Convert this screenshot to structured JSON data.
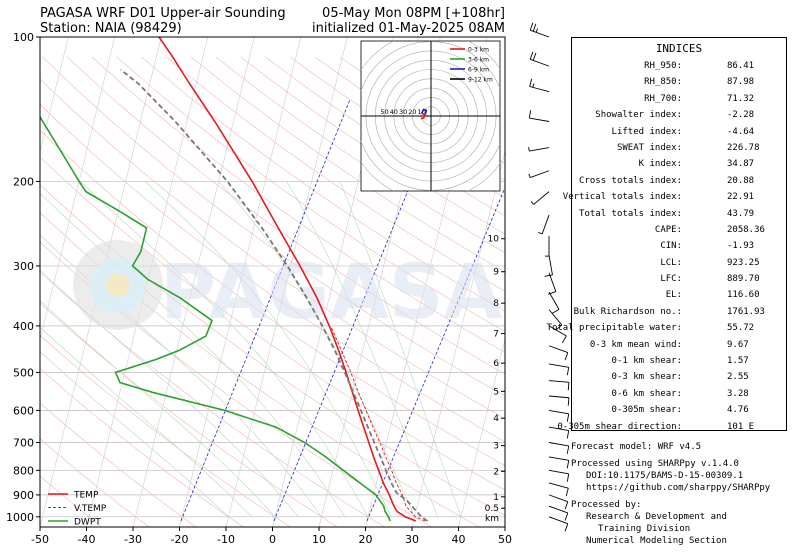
{
  "header": {
    "title_left_line1": "PAGASA WRF D01 Upper-air Sounding",
    "title_left_line2": "Station: NAIA (98429)",
    "title_right_line1": "05-May Mon 08PM [+108hr]",
    "title_right_line2": "initialized 01-May-2025 08AM"
  },
  "watermark": "PAGASA",
  "chart_data": {
    "type": "skew-t",
    "x_ticks": [
      -50,
      -40,
      -30,
      -20,
      -10,
      0,
      10,
      20,
      30,
      40,
      50
    ],
    "xlim": [
      -50,
      50
    ],
    "y_ticks": [
      1000,
      900,
      800,
      700,
      600,
      500,
      400,
      300,
      200,
      100
    ],
    "ylim": [
      1050,
      100
    ],
    "y_scale": "log",
    "height_km_labels": [
      "km",
      "0.5",
      "1",
      "2",
      "3",
      "4",
      "5",
      "6",
      "7",
      "8",
      "9",
      "10"
    ],
    "height_km_values": [
      null,
      0.5,
      1,
      2,
      3,
      4,
      5,
      6,
      7,
      8,
      9,
      10
    ],
    "grid": true,
    "legend_position": "bottom-left",
    "legend": [
      {
        "label": "TEMP",
        "color": "#e41a1c",
        "style": "solid"
      },
      {
        "label": "V.TEMP",
        "color": "#e41a1c",
        "style": "dashed"
      },
      {
        "label": "DWPT",
        "color": "#2ca02c",
        "style": "solid"
      }
    ],
    "series": [
      {
        "name": "TEMP",
        "color": "#e41a1c",
        "points": [
          [
            1020,
            30.5
          ],
          [
            1000,
            28
          ],
          [
            975,
            26
          ],
          [
            950,
            25
          ],
          [
            925,
            24.2
          ],
          [
            900,
            23.4
          ],
          [
            850,
            21.5
          ],
          [
            800,
            19.8
          ],
          [
            750,
            18
          ],
          [
            700,
            16.2
          ],
          [
            650,
            14.3
          ],
          [
            600,
            12.2
          ],
          [
            550,
            10
          ],
          [
            500,
            7.6
          ],
          [
            450,
            4.8
          ],
          [
            400,
            1.5
          ],
          [
            350,
            -2.6
          ],
          [
            300,
            -8
          ],
          [
            250,
            -14.7
          ],
          [
            200,
            -22.8
          ],
          [
            175,
            -28
          ],
          [
            150,
            -34
          ],
          [
            125,
            -41.5
          ],
          [
            110,
            -46.5
          ],
          [
            100,
            -50.5
          ]
        ]
      },
      {
        "name": "V.TEMP",
        "color": "#e41a1c",
        "points": [
          [
            1020,
            32.5
          ],
          [
            1000,
            30.2
          ],
          [
            950,
            27.6
          ],
          [
            900,
            26.2
          ],
          [
            850,
            24.3
          ],
          [
            800,
            22.6
          ],
          [
            750,
            20.6
          ],
          [
            700,
            18.6
          ],
          [
            650,
            16.3
          ],
          [
            600,
            13.9
          ],
          [
            550,
            11.3
          ],
          [
            500,
            8.6
          ],
          [
            450,
            5.4
          ],
          [
            400,
            1.8
          ]
        ]
      },
      {
        "name": "DWPT",
        "color": "#2ca02c",
        "points": [
          [
            1020,
            25
          ],
          [
            1000,
            24.4
          ],
          [
            975,
            23.4
          ],
          [
            950,
            22.8
          ],
          [
            925,
            21.7
          ],
          [
            900,
            20.5
          ],
          [
            850,
            16.5
          ],
          [
            800,
            12.2
          ],
          [
            750,
            7.7
          ],
          [
            700,
            2.4
          ],
          [
            650,
            -4.6
          ],
          [
            600,
            -16.5
          ],
          [
            550,
            -33
          ],
          [
            525,
            -40.5
          ],
          [
            500,
            -42
          ],
          [
            470,
            -34
          ],
          [
            450,
            -29.5
          ],
          [
            420,
            -24.5
          ],
          [
            390,
            -24
          ],
          [
            350,
            -32
          ],
          [
            320,
            -40
          ],
          [
            300,
            -44
          ],
          [
            280,
            -43
          ],
          [
            250,
            -43
          ],
          [
            230,
            -50
          ],
          [
            210,
            -58
          ],
          [
            200,
            -60
          ],
          [
            180,
            -64
          ],
          [
            150,
            -71
          ],
          [
            125,
            -78
          ],
          [
            110,
            -83
          ],
          [
            100,
            -86
          ]
        ]
      },
      {
        "name": "parcel",
        "color": "#777777",
        "points": [
          [
            1020,
            33
          ],
          [
            1000,
            31.5
          ],
          [
            925,
            27.5
          ],
          [
            890,
            24.8
          ],
          [
            850,
            23.2
          ],
          [
            800,
            21.4
          ],
          [
            750,
            19.5
          ],
          [
            700,
            17.4
          ],
          [
            650,
            15.2
          ],
          [
            600,
            12.8
          ],
          [
            550,
            10.2
          ],
          [
            500,
            7.3
          ],
          [
            450,
            4
          ],
          [
            400,
            0
          ],
          [
            350,
            -4.8
          ],
          [
            300,
            -10.7
          ],
          [
            250,
            -18.2
          ],
          [
            200,
            -28.1
          ],
          [
            150,
            -42.5
          ],
          [
            125,
            -52.5
          ],
          [
            117,
            -57
          ]
        ]
      }
    ],
    "hodograph": {
      "ring_labels": [
        "50",
        "40",
        "30",
        "20",
        "10"
      ],
      "legend": [
        {
          "label": "0-3 km",
          "color": "#e41a1c"
        },
        {
          "label": "3-6 km",
          "color": "#2ca02c"
        },
        {
          "label": "6-9 km",
          "color": "#1f1fb4"
        },
        {
          "label": "9-12 km",
          "color": "#000000"
        }
      ],
      "segments": [
        {
          "layer": "0-3 km",
          "u": [
            3,
            6,
            8,
            4
          ],
          "v": [
            -3,
            -2,
            1,
            3
          ]
        },
        {
          "layer": "6-9 km",
          "u": [
            4,
            6,
            9,
            8
          ],
          "v": [
            3,
            7,
            6,
            2
          ]
        }
      ]
    },
    "wind_barbs": [
      {
        "p": 100,
        "dir": 290,
        "spd": 25
      },
      {
        "p": 115,
        "dir": 290,
        "spd": 20
      },
      {
        "p": 130,
        "dir": 285,
        "spd": 15
      },
      {
        "p": 150,
        "dir": 280,
        "spd": 10
      },
      {
        "p": 170,
        "dir": 260,
        "spd": 5
      },
      {
        "p": 190,
        "dir": 250,
        "spd": 5
      },
      {
        "p": 210,
        "dir": 230,
        "spd": 5
      },
      {
        "p": 235,
        "dir": 200,
        "spd": 5
      },
      {
        "p": 260,
        "dir": 180,
        "spd": 5
      },
      {
        "p": 285,
        "dir": 170,
        "spd": 10
      },
      {
        "p": 310,
        "dir": 160,
        "spd": 10
      },
      {
        "p": 340,
        "dir": 150,
        "spd": 10
      },
      {
        "p": 370,
        "dir": 140,
        "spd": 10
      },
      {
        "p": 400,
        "dir": 120,
        "spd": 10
      },
      {
        "p": 440,
        "dir": 110,
        "spd": 10
      },
      {
        "p": 480,
        "dir": 100,
        "spd": 10
      },
      {
        "p": 520,
        "dir": 95,
        "spd": 10
      },
      {
        "p": 560,
        "dir": 95,
        "spd": 10
      },
      {
        "p": 600,
        "dir": 100,
        "spd": 10
      },
      {
        "p": 650,
        "dir": 100,
        "spd": 10
      },
      {
        "p": 700,
        "dir": 100,
        "spd": 10
      },
      {
        "p": 750,
        "dir": 100,
        "spd": 10
      },
      {
        "p": 800,
        "dir": 100,
        "spd": 10
      },
      {
        "p": 850,
        "dir": 105,
        "spd": 10
      },
      {
        "p": 900,
        "dir": 110,
        "spd": 10
      },
      {
        "p": 950,
        "dir": 110,
        "spd": 10
      },
      {
        "p": 1000,
        "dir": 110,
        "spd": 10
      }
    ]
  },
  "indices": {
    "heading": "INDICES",
    "rows": [
      {
        "label": "RH_950:",
        "value": "86.41"
      },
      {
        "label": "RH_850:",
        "value": "87.98"
      },
      {
        "label": "RH_700:",
        "value": "71.32"
      },
      {
        "label": "Showalter index:",
        "value": "-2.28"
      },
      {
        "label": "Lifted index:",
        "value": "-4.64"
      },
      {
        "label": "SWEAT index:",
        "value": "226.78"
      },
      {
        "label": "K index:",
        "value": "34.87"
      },
      {
        "label": "Cross totals index:",
        "value": "20.88"
      },
      {
        "label": "Vertical totals index:",
        "value": "22.91"
      },
      {
        "label": "Total totals index:",
        "value": "43.79"
      },
      {
        "label": "CAPE:",
        "value": "2058.36"
      },
      {
        "label": "CIN:",
        "value": "-1.93"
      },
      {
        "label": "LCL:",
        "value": "923.25"
      },
      {
        "label": "LFC:",
        "value": "889.70"
      },
      {
        "label": "EL:",
        "value": "116.60"
      },
      {
        "label": "Bulk Richardson no.:",
        "value": "1761.93"
      },
      {
        "label": "Total precipitable water:",
        "value": "55.72"
      },
      {
        "label": "0-3 km mean wind:",
        "value": "9.67"
      },
      {
        "label": "0-1 km shear:",
        "value": "1.57"
      },
      {
        "label": "0-3 km shear:",
        "value": "2.55"
      },
      {
        "label": "0-6 km shear:",
        "value": "3.28"
      },
      {
        "label": "0-305m shear:",
        "value": "4.76"
      },
      {
        "label": "0-305m shear direction:",
        "value": "101 E"
      }
    ]
  },
  "footer": {
    "forecast_model": "Forecast model: WRF v4.5",
    "processed_using": "Processed using SHARPpy v.1.4.0",
    "doi": "DOI:10.1175/BAMS-D-15-00309.1",
    "url": "https://github.com/sharppy/SHARPpy",
    "processed_by": "Processed by:",
    "org1": "Research & Development and",
    "org2": "Training Division",
    "org3": "Numerical Modeling Section"
  }
}
